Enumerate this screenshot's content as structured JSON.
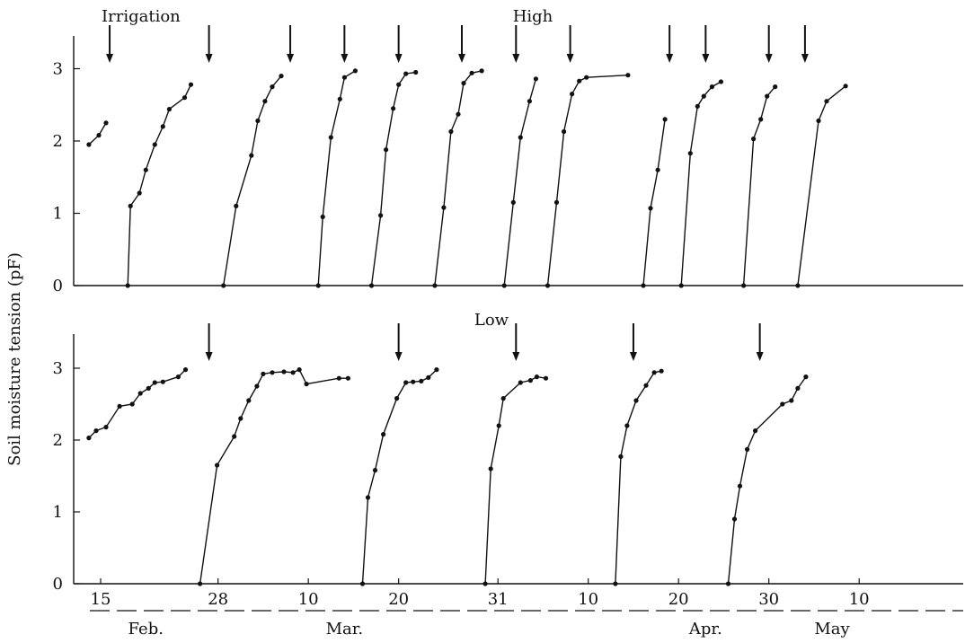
{
  "chart_data": {
    "type": "line",
    "ylabel": "Soil moisture tension (pF)",
    "annotation": "Irrigation",
    "ylim": [
      0,
      3.5
    ],
    "y_ticks": [
      "0",
      "1",
      "2",
      "3"
    ],
    "x_ticks": [
      {
        "label": "15",
        "day": 15
      },
      {
        "label": "28",
        "day": 28
      },
      {
        "label": "10",
        "day": 38
      },
      {
        "label": "20",
        "day": 48
      },
      {
        "label": "31",
        "day": 59
      },
      {
        "label": "10",
        "day": 69
      },
      {
        "label": "20",
        "day": 79
      },
      {
        "label": "30",
        "day": 89
      },
      {
        "label": "10",
        "day": 99
      }
    ],
    "months": [
      {
        "label": "Feb.",
        "day": 20
      },
      {
        "label": "Mar.",
        "day": 42
      },
      {
        "label": "Apr.",
        "day": 82
      },
      {
        "label": "May",
        "day": 96
      }
    ],
    "xlim": [
      13,
      106
    ],
    "colors": {
      "line": "#111111",
      "axis": "#111111"
    },
    "panels": [
      {
        "label": "High",
        "irrigations": [
          16,
          27,
          36,
          42,
          48,
          55,
          61,
          67,
          78,
          82,
          89,
          93
        ],
        "segments": [
          [
            [
              13.7,
              1.95
            ],
            [
              14.8,
              2.08
            ],
            [
              15.6,
              2.25
            ]
          ],
          [
            [
              18.0,
              0.0
            ],
            [
              18.3,
              1.1
            ],
            [
              19.3,
              1.28
            ],
            [
              20.0,
              1.6
            ],
            [
              21.0,
              1.95
            ],
            [
              21.9,
              2.2
            ],
            [
              22.6,
              2.44
            ],
            [
              24.3,
              2.6
            ],
            [
              25.0,
              2.78
            ]
          ],
          [
            [
              28.6,
              0.0
            ],
            [
              30.0,
              1.1
            ],
            [
              31.7,
              1.8
            ],
            [
              32.4,
              2.28
            ],
            [
              33.2,
              2.55
            ],
            [
              34.0,
              2.75
            ],
            [
              35.0,
              2.9
            ]
          ],
          [
            [
              39.1,
              0.0
            ],
            [
              39.6,
              0.95
            ],
            [
              40.5,
              2.05
            ],
            [
              41.5,
              2.58
            ],
            [
              42.0,
              2.88
            ],
            [
              43.2,
              2.97
            ]
          ],
          [
            [
              45.0,
              0.0
            ],
            [
              46.0,
              0.97
            ],
            [
              46.6,
              1.88
            ],
            [
              47.4,
              2.45
            ],
            [
              48.0,
              2.78
            ],
            [
              48.8,
              2.93
            ],
            [
              49.9,
              2.95
            ]
          ],
          [
            [
              52.0,
              0.0
            ],
            [
              53.0,
              1.08
            ],
            [
              53.8,
              2.13
            ],
            [
              54.6,
              2.37
            ],
            [
              55.2,
              2.8
            ],
            [
              56.1,
              2.94
            ],
            [
              57.2,
              2.97
            ]
          ],
          [
            [
              59.7,
              0.0
            ],
            [
              60.7,
              1.15
            ],
            [
              61.5,
              2.05
            ],
            [
              62.5,
              2.55
            ],
            [
              63.2,
              2.86
            ]
          ],
          [
            [
              64.5,
              0.0
            ],
            [
              65.5,
              1.15
            ],
            [
              66.3,
              2.13
            ],
            [
              67.2,
              2.65
            ],
            [
              68.0,
              2.83
            ],
            [
              68.8,
              2.88
            ],
            [
              73.4,
              2.91
            ]
          ],
          [
            [
              75.1,
              0.0
            ],
            [
              75.9,
              1.07
            ],
            [
              76.7,
              1.6
            ],
            [
              77.5,
              2.3
            ]
          ],
          [
            [
              79.3,
              0.0
            ],
            [
              80.3,
              1.83
            ],
            [
              81.1,
              2.48
            ],
            [
              81.8,
              2.62
            ],
            [
              82.7,
              2.75
            ],
            [
              83.7,
              2.82
            ]
          ],
          [
            [
              86.2,
              0.0
            ],
            [
              87.3,
              2.03
            ],
            [
              88.1,
              2.3
            ],
            [
              88.8,
              2.62
            ],
            [
              89.7,
              2.75
            ]
          ],
          [
            [
              92.2,
              0.0
            ],
            [
              94.5,
              2.28
            ],
            [
              95.4,
              2.55
            ],
            [
              97.5,
              2.76
            ]
          ]
        ]
      },
      {
        "label": "Low",
        "irrigations": [
          27,
          48,
          61,
          74,
          88
        ],
        "segments": [
          [
            [
              13.7,
              2.03
            ],
            [
              14.5,
              2.13
            ],
            [
              15.6,
              2.18
            ],
            [
              17.1,
              2.47
            ],
            [
              18.5,
              2.5
            ],
            [
              19.4,
              2.65
            ],
            [
              20.3,
              2.72
            ],
            [
              21.0,
              2.8
            ],
            [
              21.9,
              2.81
            ],
            [
              23.6,
              2.88
            ],
            [
              24.4,
              2.98
            ]
          ],
          [
            [
              26.0,
              0.0
            ],
            [
              27.9,
              1.65
            ],
            [
              29.8,
              2.05
            ],
            [
              30.5,
              2.3
            ],
            [
              31.4,
              2.55
            ],
            [
              32.3,
              2.75
            ],
            [
              33.0,
              2.92
            ],
            [
              34.0,
              2.94
            ],
            [
              35.3,
              2.95
            ],
            [
              36.3,
              2.94
            ],
            [
              37.0,
              2.98
            ],
            [
              37.8,
              2.78
            ],
            [
              41.4,
              2.86
            ],
            [
              42.4,
              2.86
            ]
          ],
          [
            [
              44.0,
              0.0
            ],
            [
              44.6,
              1.2
            ],
            [
              45.4,
              1.58
            ],
            [
              46.3,
              2.08
            ],
            [
              47.8,
              2.58
            ],
            [
              48.8,
              2.8
            ],
            [
              49.6,
              2.81
            ],
            [
              50.5,
              2.82
            ],
            [
              51.3,
              2.87
            ],
            [
              52.2,
              2.98
            ]
          ],
          [
            [
              57.6,
              0.0
            ],
            [
              58.2,
              1.6
            ],
            [
              59.1,
              2.2
            ],
            [
              59.6,
              2.58
            ],
            [
              61.5,
              2.8
            ],
            [
              62.6,
              2.83
            ],
            [
              63.3,
              2.88
            ],
            [
              64.3,
              2.86
            ]
          ],
          [
            [
              72.0,
              0.0
            ],
            [
              72.6,
              1.77
            ],
            [
              73.3,
              2.2
            ],
            [
              74.3,
              2.55
            ],
            [
              75.4,
              2.76
            ],
            [
              76.3,
              2.94
            ],
            [
              77.1,
              2.96
            ]
          ],
          [
            [
              84.5,
              0.0
            ],
            [
              85.2,
              0.9
            ],
            [
              85.8,
              1.36
            ],
            [
              86.6,
              1.87
            ],
            [
              87.5,
              2.13
            ],
            [
              90.5,
              2.5
            ],
            [
              91.5,
              2.55
            ],
            [
              92.2,
              2.72
            ],
            [
              93.1,
              2.88
            ]
          ]
        ]
      }
    ]
  }
}
